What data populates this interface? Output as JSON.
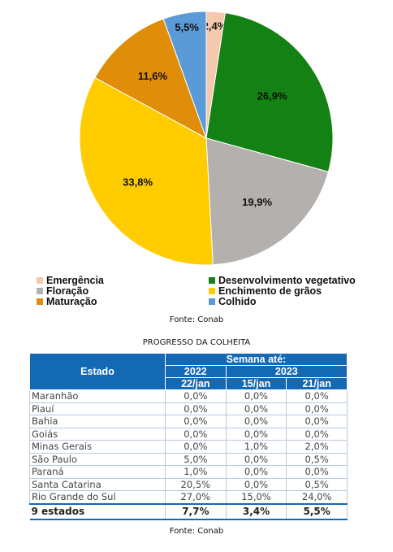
{
  "chart_data": {
    "type": "pie",
    "slices": [
      {
        "label": "Emergência",
        "value": 2.4,
        "display": "2,4%",
        "color": "#f4c9ad"
      },
      {
        "label": "Desenvolvimento vegetativo",
        "value": 26.9,
        "display": "26,9%",
        "color": "#138113"
      },
      {
        "label": "Floração",
        "value": 19.9,
        "display": "19,9%",
        "color": "#b4b0ae"
      },
      {
        "label": "Enchimento de grãos",
        "value": 33.8,
        "display": "33,8%",
        "color": "#ffcc00"
      },
      {
        "label": "Maturação",
        "value": 11.6,
        "display": "11,6%",
        "color": "#e08d0a"
      },
      {
        "label": "Colhido",
        "value": 5.5,
        "display": "5,5%",
        "color": "#5a9ad6"
      }
    ],
    "legend_position": "bottom"
  },
  "chart_source": "Fonte: Conab",
  "table": {
    "title": "PROGRESSO DA COLHEITA",
    "col_estado": "Estado",
    "col_semana": "Semana até:",
    "year_2022": "2022",
    "year_2023": "2023",
    "date_1": "22/jan",
    "date_2": "15/jan",
    "date_3": "21/jan",
    "rows": [
      [
        "Maranhão",
        "0,0%",
        "0,0%",
        "0,0%"
      ],
      [
        "Piauí",
        "0,0%",
        "0,0%",
        "0,0%"
      ],
      [
        "Bahia",
        "0,0%",
        "0,0%",
        "0,0%"
      ],
      [
        "Goiás",
        "0,0%",
        "0,0%",
        "0,0%"
      ],
      [
        "Minas Gerais",
        "0,0%",
        "1,0%",
        "2,0%"
      ],
      [
        "São Paulo",
        "5,0%",
        "0,0%",
        "0,5%"
      ],
      [
        "Paraná",
        "1,0%",
        "0,0%",
        "0,0%"
      ],
      [
        "Santa Catarina",
        "20,5%",
        "0,0%",
        "0,5%"
      ],
      [
        "Rio Grande do Sul",
        "27,0%",
        "15,0%",
        "24,0%"
      ]
    ],
    "total": [
      "9 estados",
      "7,7%",
      "3,4%",
      "5,5%"
    ]
  },
  "table_source": "Fonte: Conab"
}
